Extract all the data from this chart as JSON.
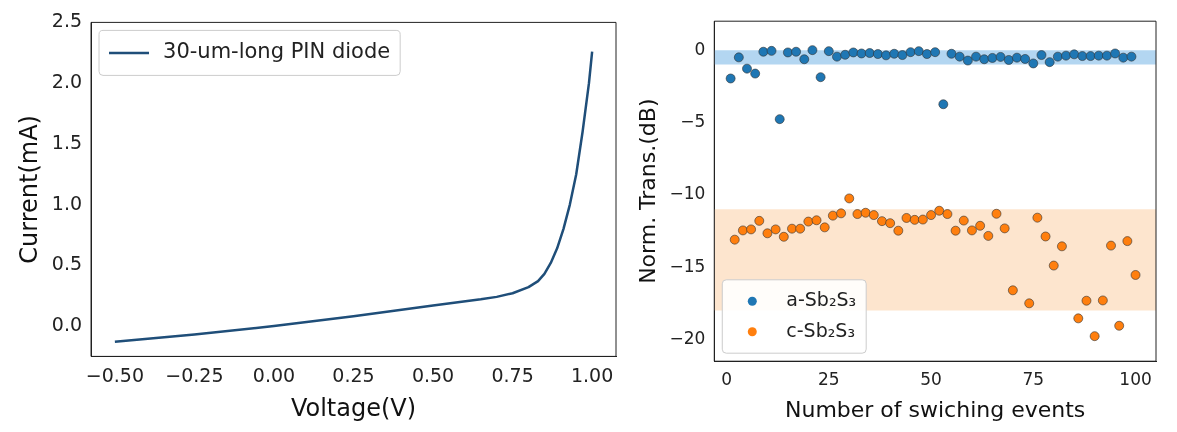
{
  "chart_data": [
    {
      "type": "line",
      "xlabel": "Voltage(V)",
      "ylabel": "Current(mA)",
      "legend": "top left",
      "marker": "none",
      "line_style": "solid",
      "xlim": [
        -0.575,
        1.075
      ],
      "ylim": [
        -0.25,
        2.5
      ],
      "xticks": [
        {
          "value": -0.5,
          "label": "−0.50"
        },
        {
          "value": -0.25,
          "label": "−0.25"
        },
        {
          "value": 0,
          "label": "0.00"
        },
        {
          "value": 0.25,
          "label": "0.25"
        },
        {
          "value": 0.5,
          "label": "0.50"
        },
        {
          "value": 0.75,
          "label": "0.75"
        },
        {
          "value": 1,
          "label": "1.00"
        }
      ],
      "yticks": [
        {
          "value": 0,
          "label": "0.0"
        },
        {
          "value": 0.5,
          "label": "0.5"
        },
        {
          "value": 1,
          "label": "1.0"
        },
        {
          "value": 1.5,
          "label": "1.5"
        },
        {
          "value": 2,
          "label": "2.0"
        },
        {
          "value": 2.5,
          "label": "2.5"
        }
      ],
      "series": [
        {
          "name": "30-um-long PIN diode",
          "color": "#1f4e79",
          "x": [
            -0.5,
            -0.25,
            0,
            0.25,
            0.5,
            0.65,
            0.7,
            0.75,
            0.8,
            0.83,
            0.85,
            0.87,
            0.89,
            0.91,
            0.93,
            0.95,
            0.97,
            0.99,
            1.0
          ],
          "values": [
            -0.13,
            -0.07,
            0.0,
            0.08,
            0.17,
            0.22,
            0.24,
            0.27,
            0.32,
            0.37,
            0.43,
            0.52,
            0.64,
            0.8,
            1.0,
            1.25,
            1.6,
            2.0,
            2.26
          ]
        }
      ]
    },
    {
      "type": "scatter",
      "xlabel": "Number of swiching events",
      "ylabel": "Norm. Trans.(dB)",
      "legend": "bottom left",
      "marker": "circle",
      "xlim": [
        -3,
        105
      ],
      "ylim": [
        -21.5,
        2
      ],
      "xticks": [
        0,
        25,
        50,
        75,
        100
      ],
      "yticks": [
        {
          "value": -20,
          "label": "−20"
        },
        {
          "value": -15,
          "label": "−15"
        },
        {
          "value": -10,
          "label": "−10"
        },
        {
          "value": -5,
          "label": "−5"
        },
        0
      ],
      "bands": [
        {
          "axis": "y",
          "from": -1,
          "to": 0,
          "color": "#a6cfee"
        },
        {
          "axis": "y",
          "from": -18,
          "to": -11,
          "color": "#fde0c5"
        }
      ],
      "series": [
        {
          "name": "a-Sb₂S₃",
          "color": "#1f77b4",
          "x": [
            1,
            3,
            5,
            7,
            9,
            11,
            13,
            15,
            17,
            19,
            21,
            23,
            25,
            27,
            29,
            31,
            33,
            35,
            37,
            39,
            41,
            43,
            45,
            47,
            49,
            51,
            53,
            55,
            57,
            59,
            61,
            63,
            65,
            67,
            69,
            71,
            73,
            75,
            77,
            79,
            81,
            83,
            85,
            87,
            89,
            91,
            93,
            95,
            97,
            99
          ],
          "values": [
            -1.96,
            -0.5,
            -1.28,
            -1.62,
            -0.11,
            -0.05,
            -4.77,
            -0.16,
            -0.11,
            -0.63,
            0,
            -1.87,
            -0.07,
            -0.45,
            -0.32,
            -0.16,
            -0.23,
            -0.2,
            -0.27,
            -0.36,
            -0.25,
            -0.34,
            -0.14,
            -0.07,
            -0.27,
            -0.14,
            -3.74,
            -0.25,
            -0.45,
            -0.72,
            -0.45,
            -0.63,
            -0.54,
            -0.47,
            -0.68,
            -0.52,
            -0.61,
            -0.92,
            -0.34,
            -0.83,
            -0.45,
            -0.38,
            -0.29,
            -0.41,
            -0.41,
            -0.38,
            -0.38,
            -0.23,
            -0.52,
            -0.45
          ]
        },
        {
          "name": "c-Sb₂S₃",
          "color": "#ff7f0e",
          "x": [
            2,
            4,
            6,
            8,
            10,
            12,
            14,
            16,
            18,
            20,
            22,
            24,
            26,
            28,
            30,
            32,
            34,
            36,
            38,
            40,
            42,
            44,
            46,
            48,
            50,
            52,
            54,
            56,
            58,
            60,
            62,
            64,
            66,
            68,
            70,
            74,
            76,
            78,
            80,
            82,
            86,
            88,
            90,
            92,
            94,
            96,
            98,
            100
          ],
          "values": [
            -13.1,
            -12.46,
            -12.39,
            -11.8,
            -12.66,
            -12.39,
            -12.9,
            -12.34,
            -12.34,
            -11.85,
            -11.76,
            -12.25,
            -11.44,
            -11.28,
            -10.25,
            -11.33,
            -11.24,
            -11.4,
            -11.82,
            -11.96,
            -12.48,
            -11.6,
            -11.73,
            -11.71,
            -11.4,
            -11.1,
            -11.33,
            -12.48,
            -11.78,
            -12.46,
            -12.14,
            -12.84,
            -11.31,
            -12.32,
            -16.6,
            -17.5,
            -11.58,
            -12.88,
            -14.89,
            -13.56,
            -18.54,
            -17.32,
            -19.77,
            -17.3,
            -13.51,
            -19.05,
            -13.2,
            -15.54
          ]
        }
      ]
    }
  ]
}
